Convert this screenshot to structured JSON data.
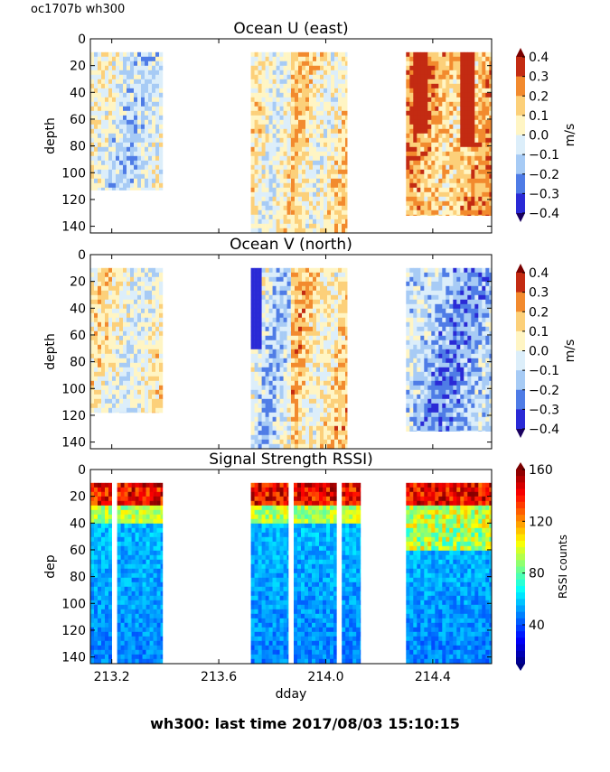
{
  "figure": {
    "corner_label": "oc1707b wh300",
    "suptitle": "wh300: last time 2017/08/03 15:10:15"
  },
  "chart_data": [
    {
      "type": "heatmap",
      "title": "Ocean U (east)",
      "xlabel": "",
      "ylabel": "depth",
      "xlim": [
        213.12,
        214.62
      ],
      "ylim": [
        145,
        0
      ],
      "yticks": [
        0,
        20,
        40,
        60,
        80,
        100,
        120,
        140
      ],
      "colorbar": {
        "label": "m/s",
        "range": [
          -0.4,
          0.4
        ],
        "ticks": [
          "0.4",
          "0.3",
          "0.2",
          "0.1",
          "0.0",
          "−0.1",
          "−0.2",
          "−0.3",
          "−0.4"
        ]
      },
      "columns": [
        {
          "x0": 213.12,
          "x1": 213.39,
          "depth_max": 113,
          "mean_value": -0.05
        },
        {
          "x0": 213.72,
          "x1": 213.87,
          "depth_max": 145,
          "mean_value": 0.02
        },
        {
          "x0": 213.87,
          "x1": 214.08,
          "depth_max": 145,
          "mean_value": 0.08
        },
        {
          "x0": 214.3,
          "x1": 214.62,
          "depth_max": 132,
          "mean_value": 0.18
        }
      ]
    },
    {
      "type": "heatmap",
      "title": "Ocean V (north)",
      "xlabel": "",
      "ylabel": "depth",
      "xlim": [
        213.12,
        214.62
      ],
      "ylim": [
        145,
        0
      ],
      "yticks": [
        0,
        20,
        40,
        60,
        80,
        100,
        120,
        140
      ],
      "colorbar": {
        "label": "m/s",
        "range": [
          -0.4,
          0.4
        ],
        "ticks": [
          "0.4",
          "0.3",
          "0.2",
          "0.1",
          "0.0",
          "−0.1",
          "−0.2",
          "−0.3",
          "−0.4"
        ]
      },
      "columns": [
        {
          "x0": 213.12,
          "x1": 213.39,
          "depth_max": 118,
          "mean_value": 0.03
        },
        {
          "x0": 213.72,
          "x1": 213.87,
          "depth_max": 145,
          "mean_value": -0.08
        },
        {
          "x0": 213.87,
          "x1": 214.08,
          "depth_max": 145,
          "mean_value": 0.1
        },
        {
          "x0": 214.3,
          "x1": 214.62,
          "depth_max": 132,
          "mean_value": -0.15
        }
      ]
    },
    {
      "type": "heatmap",
      "title": "Signal Strength RSSI)",
      "xlabel": "dday",
      "ylabel": "dep",
      "xlim": [
        213.12,
        214.62
      ],
      "ylim": [
        145,
        0
      ],
      "xticks": [
        "213.2",
        "213.6",
        "214.0",
        "214.4"
      ],
      "xtick_values": [
        213.2,
        213.6,
        214.0,
        214.4
      ],
      "yticks": [
        0,
        20,
        40,
        60,
        80,
        100,
        120,
        140
      ],
      "colorbar": {
        "label": "RSSI counts",
        "range": [
          10,
          160
        ],
        "ticks": [
          "160",
          "120",
          "80",
          "40"
        ]
      },
      "columns": [
        {
          "x0": 213.12,
          "x1": 213.2,
          "depth_max": 145
        },
        {
          "x0": 213.22,
          "x1": 213.39,
          "depth_max": 145
        },
        {
          "x0": 213.72,
          "x1": 213.86,
          "depth_max": 145
        },
        {
          "x0": 213.88,
          "x1": 214.04,
          "depth_max": 145
        },
        {
          "x0": 214.06,
          "x1": 214.13,
          "depth_max": 145
        },
        {
          "x0": 214.3,
          "x1": 214.62,
          "depth_max": 145
        }
      ]
    }
  ]
}
